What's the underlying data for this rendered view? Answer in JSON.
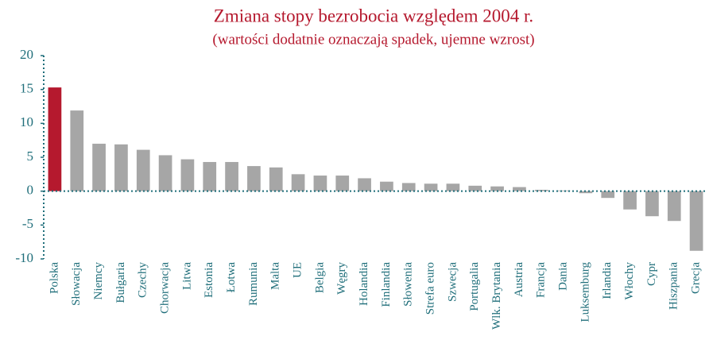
{
  "chart_data": {
    "type": "bar",
    "title": "Zmiana stopy bezrobocia względem 2004 r.",
    "subtitle": "(wartości dodatnie oznaczają spadek, ujemne wzrost)",
    "categories": [
      "Polska",
      "Słowacja",
      "Niemcy",
      "Bułgaria",
      "Czechy",
      "Chorwacja",
      "Litwa",
      "Estonia",
      "Łotwa",
      "Rumunia",
      "Malta",
      "UE",
      "Belgia",
      "Węgry",
      "Holandia",
      "Finlandia",
      "Słowenia",
      "Strefa euro",
      "Szwecja",
      "Portugalia",
      "Wlk. Brytania",
      "Austria",
      "Francja",
      "Dania",
      "Luksemburg",
      "Irlandia",
      "Włochy",
      "Cypr",
      "Hiszpania",
      "Grecja"
    ],
    "values": [
      15.3,
      11.9,
      7.0,
      6.9,
      6.1,
      5.3,
      4.7,
      4.3,
      4.3,
      3.7,
      3.5,
      2.5,
      2.3,
      2.3,
      1.9,
      1.4,
      1.2,
      1.1,
      1.1,
      0.8,
      0.7,
      0.6,
      0.2,
      0.1,
      -0.3,
      -1.0,
      -2.7,
      -3.7,
      -4.4,
      -8.8
    ],
    "colors": [
      "#b5192e",
      "#a6a6a6",
      "#a6a6a6",
      "#a6a6a6",
      "#a6a6a6",
      "#a6a6a6",
      "#a6a6a6",
      "#a6a6a6",
      "#a6a6a6",
      "#a6a6a6",
      "#a6a6a6",
      "#a6a6a6",
      "#a6a6a6",
      "#a6a6a6",
      "#a6a6a6",
      "#a6a6a6",
      "#a6a6a6",
      "#a6a6a6",
      "#a6a6a6",
      "#a6a6a6",
      "#a6a6a6",
      "#a6a6a6",
      "#a6a6a6",
      "#a6a6a6",
      "#a6a6a6",
      "#a6a6a6",
      "#a6a6a6",
      "#a6a6a6",
      "#a6a6a6",
      "#a6a6a6"
    ],
    "ylim": [
      -10,
      20
    ],
    "yticks": [
      -10,
      -5,
      0,
      5,
      10,
      15,
      20
    ],
    "grid": false
  }
}
